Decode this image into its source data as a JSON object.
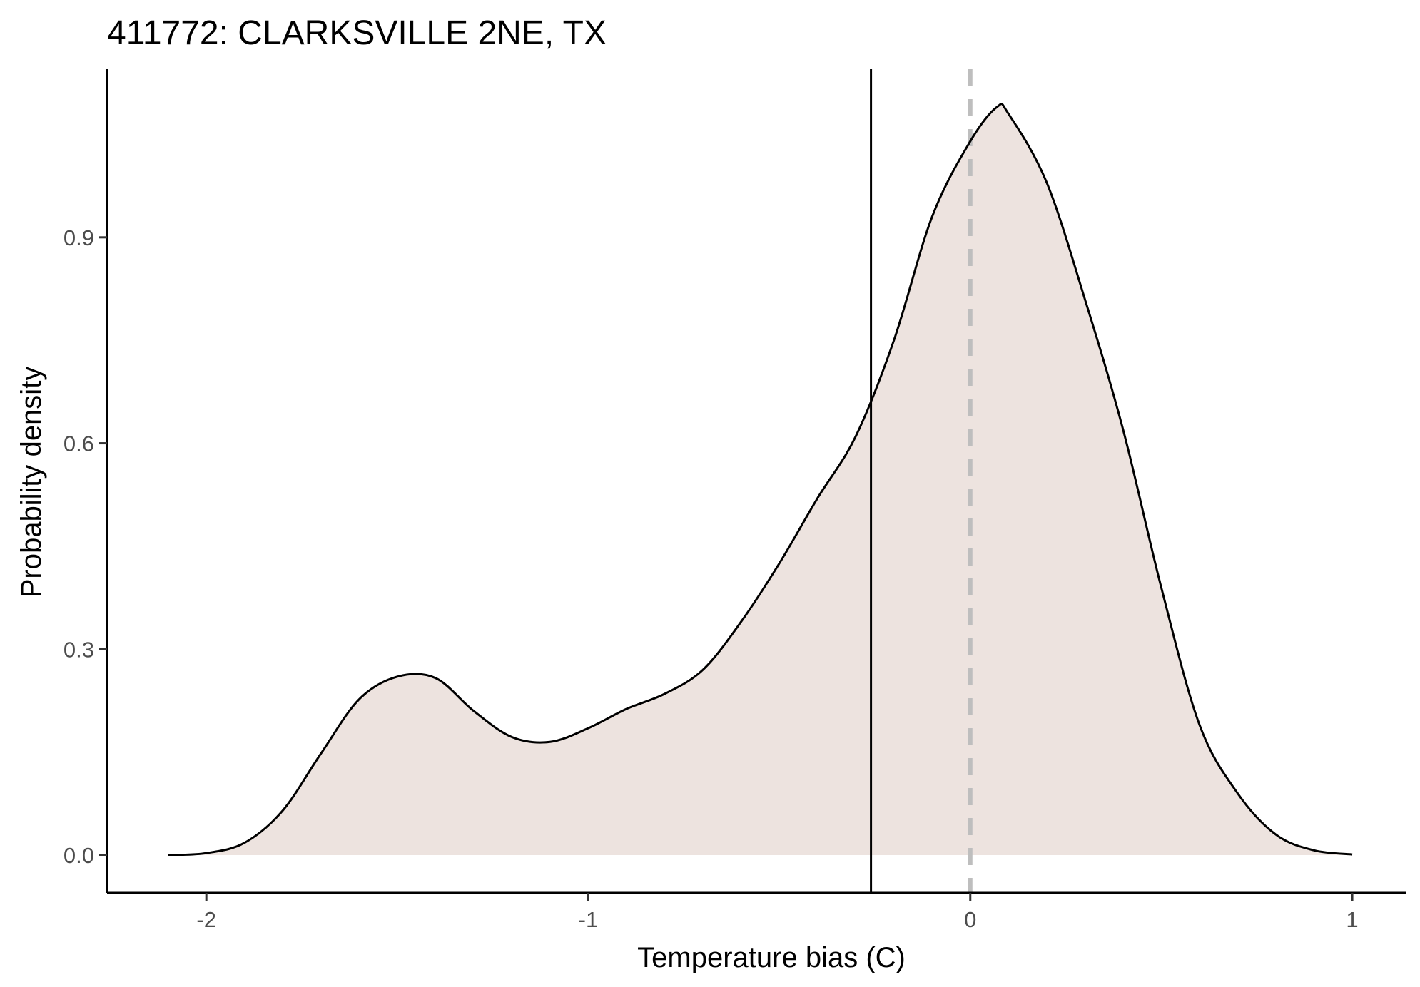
{
  "chart_data": {
    "type": "area",
    "title": "411772: CLARKSVILLE 2NE, TX",
    "xlabel": "Temperature bias (C)",
    "ylabel": "Probability density",
    "xlim": [
      -2.26,
      1.14
    ],
    "ylim": [
      -0.055,
      1.145
    ],
    "x_ticks": [
      -2,
      -1,
      0,
      1
    ],
    "x_tick_labels": [
      "-2",
      "-1",
      "0",
      "1"
    ],
    "y_ticks": [
      0.0,
      0.3,
      0.6,
      0.9
    ],
    "y_tick_labels": [
      "0.0",
      "0.3",
      "0.6",
      "0.9"
    ],
    "series": [
      {
        "name": "density",
        "fill": "#ede3df",
        "line_color": "#000000",
        "x": [
          -2.1,
          -2.0,
          -1.9,
          -1.8,
          -1.7,
          -1.6,
          -1.5,
          -1.4,
          -1.3,
          -1.2,
          -1.1,
          -1.0,
          -0.9,
          -0.8,
          -0.7,
          -0.6,
          -0.5,
          -0.4,
          -0.3,
          -0.2,
          -0.1,
          0.0,
          0.07,
          0.1,
          0.2,
          0.3,
          0.4,
          0.5,
          0.6,
          0.7,
          0.8,
          0.9,
          1.0
        ],
        "y": [
          0.0,
          0.003,
          0.018,
          0.065,
          0.148,
          0.227,
          0.26,
          0.258,
          0.21,
          0.172,
          0.165,
          0.185,
          0.213,
          0.235,
          0.27,
          0.34,
          0.425,
          0.52,
          0.61,
          0.75,
          0.93,
          1.04,
          1.09,
          1.08,
          0.98,
          0.81,
          0.62,
          0.39,
          0.19,
          0.09,
          0.03,
          0.007,
          0.001
        ]
      }
    ],
    "reference_lines": [
      {
        "name": "mean",
        "x": -0.26,
        "style": "solid",
        "color": "#000000"
      },
      {
        "name": "zero",
        "x": 0,
        "style": "dashed",
        "color": "#bebebe"
      }
    ]
  }
}
